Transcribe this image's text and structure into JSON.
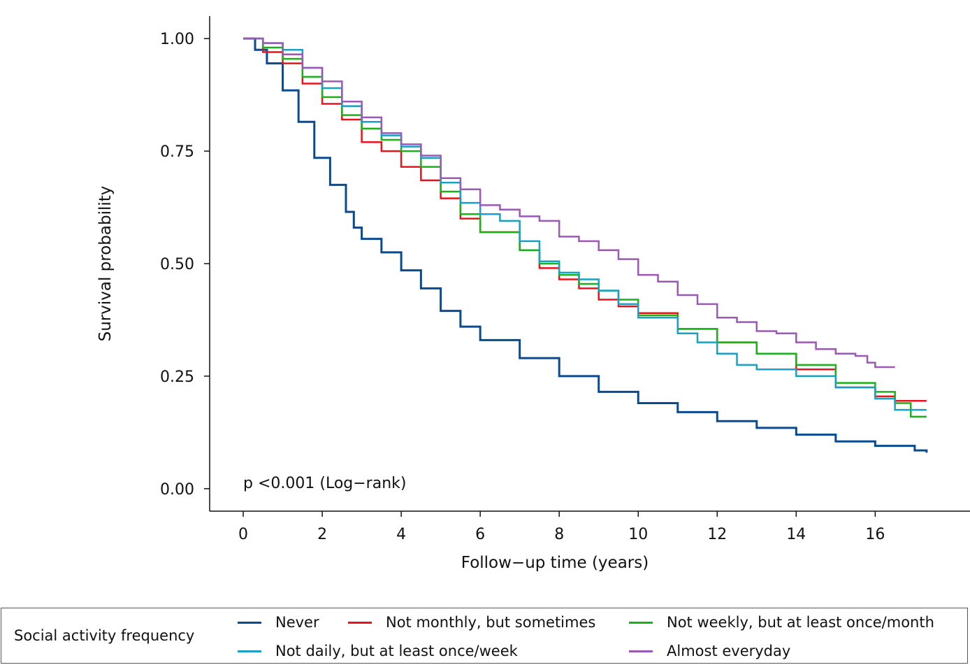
{
  "chart_data": {
    "type": "line",
    "title": "",
    "xlabel": "Follow−up time (years)",
    "ylabel": "Survival probability",
    "xlim": [
      -0.85,
      18.4
    ],
    "ylim": [
      -0.05,
      1.05
    ],
    "x_ticks": [
      0,
      2,
      4,
      6,
      8,
      10,
      12,
      14,
      16
    ],
    "y_ticks": [
      0.0,
      0.25,
      0.5,
      0.75,
      1.0
    ],
    "y_tick_labels": [
      "0.00",
      "0.25",
      "0.50",
      "0.75",
      "1.00"
    ],
    "grid": false,
    "annotation": "p <0.001 (Log−rank)",
    "legend": {
      "title": "Social activity frequency",
      "placement": "bottom"
    },
    "series": [
      {
        "name": "Never",
        "color": "#0a4a8f",
        "points": [
          [
            0,
            1.0
          ],
          [
            0.3,
            0.975
          ],
          [
            0.6,
            0.945
          ],
          [
            1.0,
            0.885
          ],
          [
            1.4,
            0.815
          ],
          [
            1.8,
            0.735
          ],
          [
            2.2,
            0.675
          ],
          [
            2.6,
            0.615
          ],
          [
            2.8,
            0.58
          ],
          [
            3.0,
            0.555
          ],
          [
            3.5,
            0.525
          ],
          [
            4.0,
            0.485
          ],
          [
            4.5,
            0.445
          ],
          [
            5.0,
            0.395
          ],
          [
            5.5,
            0.36
          ],
          [
            6.0,
            0.33
          ],
          [
            7.0,
            0.29
          ],
          [
            8.0,
            0.25
          ],
          [
            9.0,
            0.215
          ],
          [
            10.0,
            0.19
          ],
          [
            11.0,
            0.17
          ],
          [
            12.0,
            0.15
          ],
          [
            13.0,
            0.135
          ],
          [
            14.0,
            0.12
          ],
          [
            15.0,
            0.105
          ],
          [
            16.0,
            0.095
          ],
          [
            17.0,
            0.085
          ],
          [
            17.3,
            0.08
          ]
        ]
      },
      {
        "name": "Not monthly, but sometimes",
        "color": "#e8141b",
        "points": [
          [
            0,
            1.0
          ],
          [
            0.5,
            0.97
          ],
          [
            1.0,
            0.945
          ],
          [
            1.5,
            0.9
          ],
          [
            2.0,
            0.855
          ],
          [
            2.5,
            0.82
          ],
          [
            3.0,
            0.77
          ],
          [
            3.5,
            0.75
          ],
          [
            4.0,
            0.715
          ],
          [
            4.5,
            0.685
          ],
          [
            5.0,
            0.645
          ],
          [
            5.5,
            0.6
          ],
          [
            6.0,
            0.57
          ],
          [
            7.0,
            0.53
          ],
          [
            7.5,
            0.49
          ],
          [
            8.0,
            0.465
          ],
          [
            8.5,
            0.445
          ],
          [
            9.0,
            0.42
          ],
          [
            9.5,
            0.405
          ],
          [
            10.0,
            0.39
          ],
          [
            11.0,
            0.355
          ],
          [
            12.0,
            0.325
          ],
          [
            13.0,
            0.3
          ],
          [
            14.0,
            0.265
          ],
          [
            15.0,
            0.225
          ],
          [
            16.0,
            0.205
          ],
          [
            16.5,
            0.195
          ],
          [
            17.3,
            0.195
          ]
        ]
      },
      {
        "name": "Not weekly, but at least once/month",
        "color": "#19b219",
        "points": [
          [
            0,
            1.0
          ],
          [
            0.5,
            0.98
          ],
          [
            1.0,
            0.955
          ],
          [
            1.5,
            0.915
          ],
          [
            2.0,
            0.87
          ],
          [
            2.5,
            0.83
          ],
          [
            3.0,
            0.8
          ],
          [
            3.5,
            0.775
          ],
          [
            4.0,
            0.75
          ],
          [
            4.5,
            0.715
          ],
          [
            5.0,
            0.66
          ],
          [
            5.5,
            0.61
          ],
          [
            6.0,
            0.57
          ],
          [
            7.0,
            0.53
          ],
          [
            7.5,
            0.5
          ],
          [
            8.0,
            0.475
          ],
          [
            8.5,
            0.455
          ],
          [
            9.0,
            0.44
          ],
          [
            9.5,
            0.42
          ],
          [
            10.0,
            0.385
          ],
          [
            11.0,
            0.355
          ],
          [
            12.0,
            0.325
          ],
          [
            13.0,
            0.3
          ],
          [
            14.0,
            0.275
          ],
          [
            15.0,
            0.235
          ],
          [
            16.0,
            0.215
          ],
          [
            16.5,
            0.19
          ],
          [
            16.9,
            0.16
          ],
          [
            17.3,
            0.16
          ]
        ]
      },
      {
        "name": "Not daily, but at least once/week",
        "color": "#1aa0c6",
        "points": [
          [
            0,
            1.0
          ],
          [
            0.5,
            0.99
          ],
          [
            1.0,
            0.975
          ],
          [
            1.5,
            0.935
          ],
          [
            2.0,
            0.89
          ],
          [
            2.5,
            0.85
          ],
          [
            3.0,
            0.815
          ],
          [
            3.5,
            0.785
          ],
          [
            4.0,
            0.76
          ],
          [
            4.5,
            0.735
          ],
          [
            5.0,
            0.68
          ],
          [
            5.5,
            0.635
          ],
          [
            6.0,
            0.61
          ],
          [
            6.5,
            0.595
          ],
          [
            7.0,
            0.55
          ],
          [
            7.5,
            0.505
          ],
          [
            8.0,
            0.48
          ],
          [
            8.5,
            0.465
          ],
          [
            9.0,
            0.44
          ],
          [
            9.5,
            0.41
          ],
          [
            10.0,
            0.38
          ],
          [
            11.0,
            0.345
          ],
          [
            11.5,
            0.325
          ],
          [
            12.0,
            0.3
          ],
          [
            12.5,
            0.275
          ],
          [
            13.0,
            0.265
          ],
          [
            14.0,
            0.25
          ],
          [
            15.0,
            0.225
          ],
          [
            16.0,
            0.2
          ],
          [
            16.5,
            0.175
          ],
          [
            17.3,
            0.175
          ]
        ]
      },
      {
        "name": "Almost everyday",
        "color": "#9b59b6",
        "points": [
          [
            0,
            1.0
          ],
          [
            0.5,
            0.99
          ],
          [
            1.0,
            0.965
          ],
          [
            1.5,
            0.935
          ],
          [
            2.0,
            0.905
          ],
          [
            2.5,
            0.86
          ],
          [
            3.0,
            0.825
          ],
          [
            3.5,
            0.79
          ],
          [
            4.0,
            0.765
          ],
          [
            4.5,
            0.74
          ],
          [
            5.0,
            0.69
          ],
          [
            5.5,
            0.665
          ],
          [
            6.0,
            0.63
          ],
          [
            6.5,
            0.62
          ],
          [
            7.0,
            0.605
          ],
          [
            7.5,
            0.595
          ],
          [
            8.0,
            0.56
          ],
          [
            8.5,
            0.55
          ],
          [
            9.0,
            0.53
          ],
          [
            9.5,
            0.51
          ],
          [
            10.0,
            0.475
          ],
          [
            10.5,
            0.46
          ],
          [
            11.0,
            0.43
          ],
          [
            11.5,
            0.41
          ],
          [
            12.0,
            0.38
          ],
          [
            12.5,
            0.37
          ],
          [
            13.0,
            0.35
          ],
          [
            13.5,
            0.345
          ],
          [
            14.0,
            0.325
          ],
          [
            14.5,
            0.31
          ],
          [
            15.0,
            0.3
          ],
          [
            15.5,
            0.295
          ],
          [
            15.8,
            0.28
          ],
          [
            16.0,
            0.27
          ],
          [
            16.5,
            0.27
          ]
        ]
      }
    ]
  }
}
